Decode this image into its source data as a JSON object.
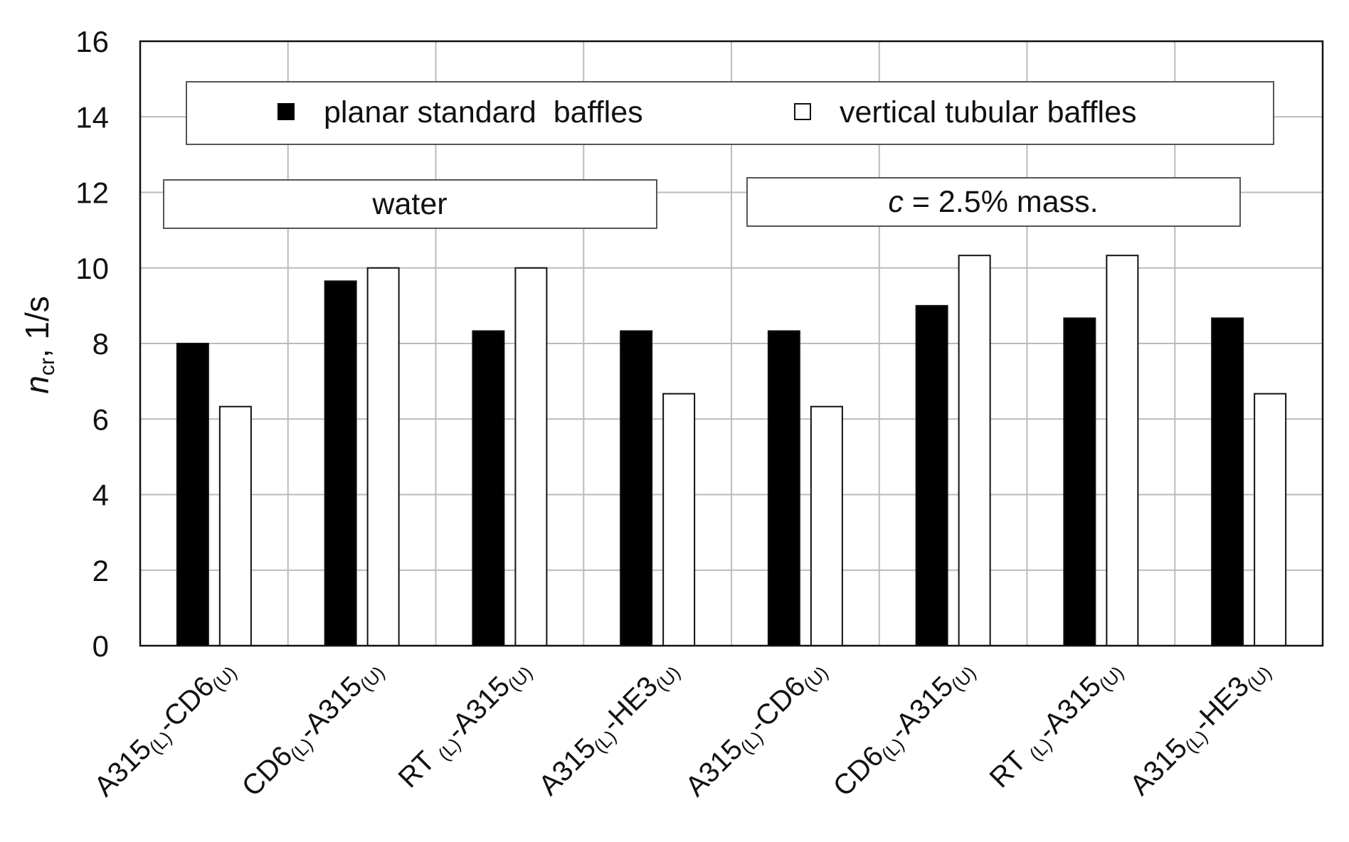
{
  "chart_data": {
    "type": "bar",
    "ylabel_main": "n",
    "ylabel_sub": "cr",
    "ylabel_rest": ", 1/s",
    "ylim": [
      0,
      16
    ],
    "yticks": [
      0,
      2,
      4,
      6,
      8,
      10,
      12,
      14,
      16
    ],
    "grid": true,
    "categories": [
      {
        "a": "A315",
        "a_sub": "(L)",
        "b": "-CD6",
        "b_sub": "(U)"
      },
      {
        "a": "CD6",
        "a_sub": "(L)",
        "b": "-A315",
        "b_sub": "(U)"
      },
      {
        "a": "RT ",
        "a_sub": "(L)",
        "b": "-A315",
        "b_sub": "(U)"
      },
      {
        "a": "A315",
        "a_sub": "(L)",
        "b": "-HE3",
        "b_sub": "(U)"
      },
      {
        "a": "A315",
        "a_sub": "(L)",
        "b": "-CD6",
        "b_sub": "(U)"
      },
      {
        "a": "CD6",
        "a_sub": "(L)",
        "b": "-A315",
        "b_sub": "(U)"
      },
      {
        "a": "RT ",
        "a_sub": "(L)",
        "b": "-A315",
        "b_sub": "(U)"
      },
      {
        "a": "A315",
        "a_sub": "(L)",
        "b": "-HE3",
        "b_sub": "(U)"
      }
    ],
    "series": [
      {
        "name": "planar standard  baffles",
        "color": "#000000",
        "values": [
          8.0,
          9.65,
          8.33,
          8.33,
          8.33,
          9.0,
          8.67,
          8.67
        ]
      },
      {
        "name": "vertical tubular baffles",
        "color": "#ffffff",
        "values": [
          6.33,
          10.0,
          10.0,
          6.67,
          6.33,
          10.33,
          10.33,
          6.67
        ]
      }
    ],
    "legend": "top",
    "annotations": [
      {
        "text": "water",
        "italic_prefix": ""
      },
      {
        "text": " = 2.5% mass.",
        "italic_prefix": "c"
      }
    ]
  }
}
